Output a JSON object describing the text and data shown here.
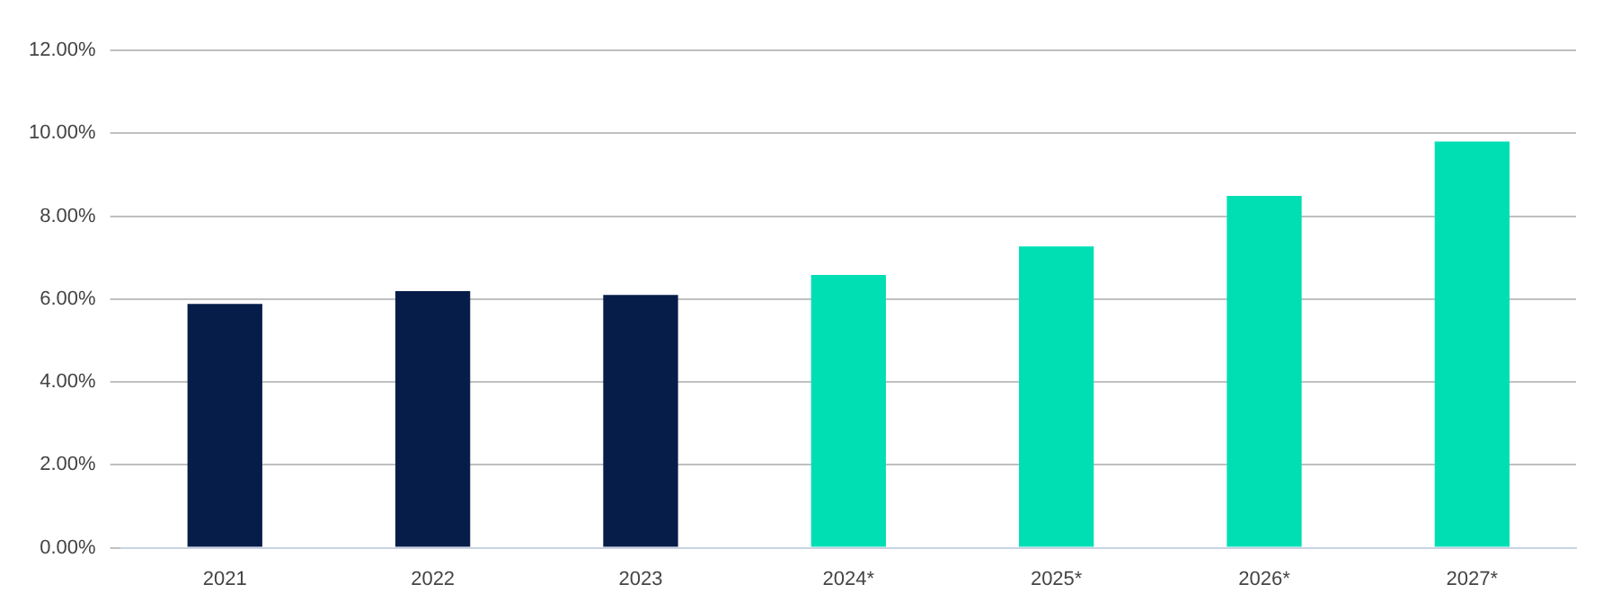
{
  "chart_data": {
    "type": "bar",
    "categories": [
      "2021",
      "2022",
      "2023",
      "2024*",
      "2025*",
      "2026*",
      "2027*"
    ],
    "values": [
      5.88,
      6.19,
      6.1,
      6.58,
      7.27,
      8.49,
      9.8
    ],
    "colors": [
      "#071d49",
      "#071d49",
      "#071d49",
      "#00dfb4",
      "#00dfb4",
      "#00dfb4",
      "#00dfb4"
    ],
    "ylim": [
      0,
      12
    ],
    "yticks": [
      {
        "value": 0,
        "label": "0.00%"
      },
      {
        "value": 2,
        "label": "2.00%"
      },
      {
        "value": 4,
        "label": "4.00%"
      },
      {
        "value": 6,
        "label": "6.00%"
      },
      {
        "value": 8,
        "label": "8.00%"
      },
      {
        "value": 10,
        "label": "10.00%"
      },
      {
        "value": 12,
        "label": "12.00%"
      }
    ],
    "grid": "y",
    "legend": false
  }
}
